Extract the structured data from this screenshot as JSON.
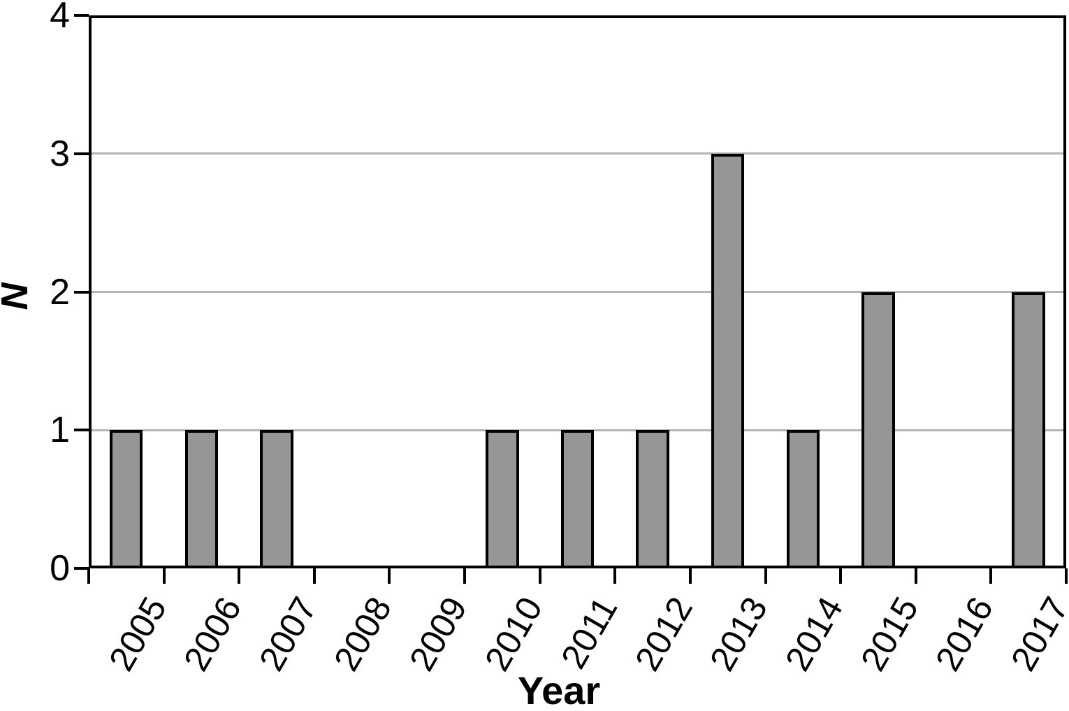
{
  "chart_data": {
    "type": "bar",
    "title": "",
    "xlabel": "Year",
    "ylabel": "N",
    "categories": [
      "2005",
      "2006",
      "2007",
      "2008",
      "2009",
      "2010",
      "2011",
      "2012",
      "2013",
      "2014",
      "2015",
      "2016",
      "2017"
    ],
    "values": [
      1,
      1,
      1,
      0,
      0,
      1,
      1,
      1,
      3,
      1,
      2,
      0,
      2
    ],
    "ylim": [
      0,
      4
    ],
    "yticks": [
      0,
      1,
      2,
      3,
      4
    ],
    "gridlines_at": [
      1,
      2,
      3
    ],
    "grid": "horizontal",
    "legend": "none",
    "x_tick_label_rotation_deg": 60,
    "colors": {
      "bar_fill": "#969696",
      "bar_border": "#000000",
      "gridline": "#b4b4b4",
      "frame": "#000000",
      "text": "#000000",
      "background": "#ffffff"
    }
  }
}
